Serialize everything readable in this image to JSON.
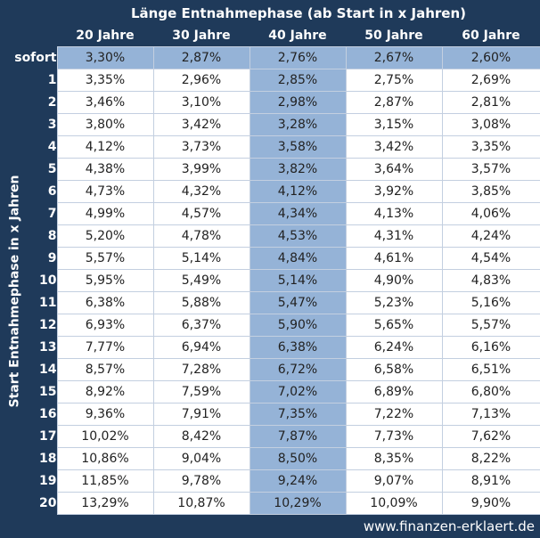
{
  "title": "Länge Entnahmephase (ab Start in x Jahren)",
  "side_title": "Start Entnahmephase in x Jahren",
  "columns": [
    "20 Jahre",
    "30 Jahre",
    "40 Jahre",
    "50 Jahre",
    "60 Jahre"
  ],
  "highlight_column_index": 2,
  "rows": [
    {
      "label": "sofort",
      "values": [
        "3,30%",
        "2,87%",
        "2,76%",
        "2,67%",
        "2,60%"
      ]
    },
    {
      "label": "1",
      "values": [
        "3,35%",
        "2,96%",
        "2,85%",
        "2,75%",
        "2,69%"
      ]
    },
    {
      "label": "2",
      "values": [
        "3,46%",
        "3,10%",
        "2,98%",
        "2,87%",
        "2,81%"
      ]
    },
    {
      "label": "3",
      "values": [
        "3,80%",
        "3,42%",
        "3,28%",
        "3,15%",
        "3,08%"
      ]
    },
    {
      "label": "4",
      "values": [
        "4,12%",
        "3,73%",
        "3,58%",
        "3,42%",
        "3,35%"
      ]
    },
    {
      "label": "5",
      "values": [
        "4,38%",
        "3,99%",
        "3,82%",
        "3,64%",
        "3,57%"
      ]
    },
    {
      "label": "6",
      "values": [
        "4,73%",
        "4,32%",
        "4,12%",
        "3,92%",
        "3,85%"
      ]
    },
    {
      "label": "7",
      "values": [
        "4,99%",
        "4,57%",
        "4,34%",
        "4,13%",
        "4,06%"
      ]
    },
    {
      "label": "8",
      "values": [
        "5,20%",
        "4,78%",
        "4,53%",
        "4,31%",
        "4,24%"
      ]
    },
    {
      "label": "9",
      "values": [
        "5,57%",
        "5,14%",
        "4,84%",
        "4,61%",
        "4,54%"
      ]
    },
    {
      "label": "10",
      "values": [
        "5,95%",
        "5,49%",
        "5,14%",
        "4,90%",
        "4,83%"
      ]
    },
    {
      "label": "11",
      "values": [
        "6,38%",
        "5,88%",
        "5,47%",
        "5,23%",
        "5,16%"
      ]
    },
    {
      "label": "12",
      "values": [
        "6,93%",
        "6,37%",
        "5,90%",
        "5,65%",
        "5,57%"
      ]
    },
    {
      "label": "13",
      "values": [
        "7,77%",
        "6,94%",
        "6,38%",
        "6,24%",
        "6,16%"
      ]
    },
    {
      "label": "14",
      "values": [
        "8,57%",
        "7,28%",
        "6,72%",
        "6,58%",
        "6,51%"
      ]
    },
    {
      "label": "15",
      "values": [
        "8,92%",
        "7,59%",
        "7,02%",
        "6,89%",
        "6,80%"
      ]
    },
    {
      "label": "16",
      "values": [
        "9,36%",
        "7,91%",
        "7,35%",
        "7,22%",
        "7,13%"
      ]
    },
    {
      "label": "17",
      "values": [
        "10,02%",
        "8,42%",
        "7,87%",
        "7,73%",
        "7,62%"
      ]
    },
    {
      "label": "18",
      "values": [
        "10,86%",
        "9,04%",
        "8,50%",
        "8,35%",
        "8,22%"
      ]
    },
    {
      "label": "19",
      "values": [
        "11,85%",
        "9,78%",
        "9,24%",
        "9,07%",
        "8,91%"
      ]
    },
    {
      "label": "20",
      "values": [
        "13,29%",
        "10,87%",
        "10,29%",
        "10,09%",
        "9,90%"
      ]
    }
  ],
  "footer": "www.finanzen-erklaert.de",
  "colors": {
    "background": "#1f3a5a",
    "highlight": "#95b3d7",
    "cell": "#ffffff"
  }
}
